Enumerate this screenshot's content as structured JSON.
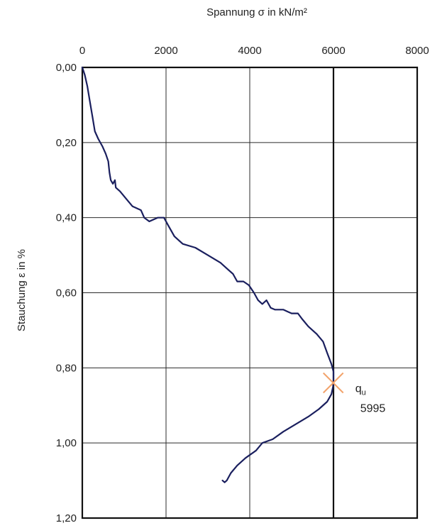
{
  "chart_data": {
    "type": "line",
    "xlabel": "Spannung σ in kN/m²",
    "ylabel": "Stauchung ε in %",
    "x_axis_position": "top",
    "y_axis_inverted": true,
    "xlim": [
      0,
      8000
    ],
    "ylim": [
      0,
      1.2
    ],
    "x_ticks": [
      0,
      2000,
      4000,
      6000,
      8000
    ],
    "x_tick_labels": [
      "0",
      "2000",
      "4000",
      "6000",
      "8000"
    ],
    "y_ticks": [
      0,
      0.2,
      0.4,
      0.6,
      0.8,
      1.0,
      1.2
    ],
    "y_tick_labels": [
      "0,00",
      "0,20",
      "0,40",
      "0,60",
      "0,80",
      "1,00",
      "1,20"
    ],
    "grid": true,
    "series": [
      {
        "color": "#1a1f5e",
        "points": [
          [
            0,
            0.0
          ],
          [
            60,
            0.02
          ],
          [
            120,
            0.05
          ],
          [
            180,
            0.09
          ],
          [
            240,
            0.13
          ],
          [
            300,
            0.17
          ],
          [
            380,
            0.19
          ],
          [
            480,
            0.21
          ],
          [
            560,
            0.23
          ],
          [
            620,
            0.25
          ],
          [
            650,
            0.28
          ],
          [
            680,
            0.3
          ],
          [
            730,
            0.31
          ],
          [
            780,
            0.3
          ],
          [
            800,
            0.32
          ],
          [
            900,
            0.33
          ],
          [
            1050,
            0.35
          ],
          [
            1200,
            0.37
          ],
          [
            1400,
            0.38
          ],
          [
            1480,
            0.4
          ],
          [
            1600,
            0.41
          ],
          [
            1800,
            0.4
          ],
          [
            1950,
            0.4
          ],
          [
            2050,
            0.42
          ],
          [
            2200,
            0.45
          ],
          [
            2400,
            0.47
          ],
          [
            2700,
            0.48
          ],
          [
            3000,
            0.5
          ],
          [
            3300,
            0.52
          ],
          [
            3500,
            0.54
          ],
          [
            3600,
            0.55
          ],
          [
            3700,
            0.57
          ],
          [
            3850,
            0.57
          ],
          [
            3980,
            0.58
          ],
          [
            4100,
            0.6
          ],
          [
            4200,
            0.62
          ],
          [
            4300,
            0.63
          ],
          [
            4400,
            0.62
          ],
          [
            4500,
            0.64
          ],
          [
            4600,
            0.645
          ],
          [
            4800,
            0.645
          ],
          [
            4900,
            0.65
          ],
          [
            5000,
            0.655
          ],
          [
            5150,
            0.655
          ],
          [
            5250,
            0.67
          ],
          [
            5400,
            0.69
          ],
          [
            5600,
            0.71
          ],
          [
            5750,
            0.73
          ],
          [
            5850,
            0.76
          ],
          [
            5950,
            0.79
          ],
          [
            6000,
            0.81
          ],
          [
            6000,
            0.835
          ],
          [
            5990,
            0.85
          ],
          [
            5950,
            0.87
          ],
          [
            5850,
            0.89
          ],
          [
            5650,
            0.91
          ],
          [
            5400,
            0.93
          ],
          [
            5100,
            0.95
          ],
          [
            4800,
            0.97
          ],
          [
            4550,
            0.99
          ],
          [
            4300,
            1.0
          ],
          [
            4150,
            1.02
          ],
          [
            3900,
            1.04
          ],
          [
            3700,
            1.06
          ],
          [
            3550,
            1.08
          ],
          [
            3450,
            1.1
          ],
          [
            3400,
            1.105
          ],
          [
            3350,
            1.1
          ]
        ]
      }
    ],
    "annotations": [
      {
        "marker": "x",
        "x": 5995,
        "y": 0.84,
        "label_main": "q",
        "label_sub": "u",
        "value_label": "5995",
        "color": "#f2a36b"
      }
    ]
  }
}
